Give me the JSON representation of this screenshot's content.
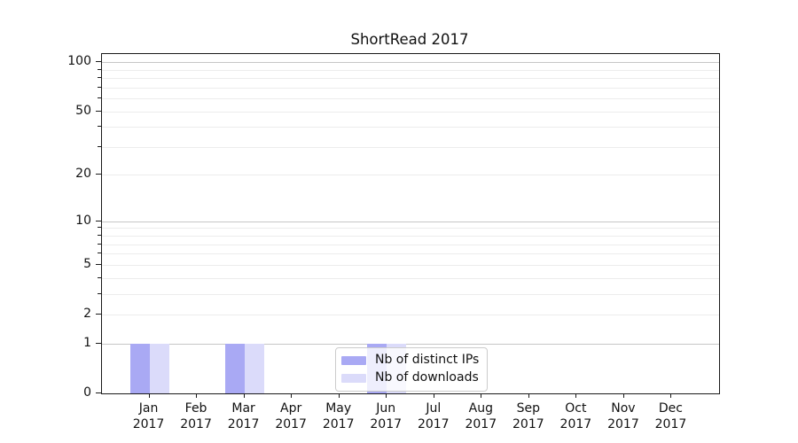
{
  "chart_data": {
    "type": "bar",
    "title": "ShortRead 2017",
    "categories": [
      "Jan",
      "Feb",
      "Mar",
      "Apr",
      "May",
      "Jun",
      "Jul",
      "Aug",
      "Sep",
      "Oct",
      "Nov",
      "Dec"
    ],
    "category_year": "2017",
    "series": [
      {
        "name": "Nb of distinct IPs",
        "color": "#a9a9f4",
        "values": [
          1,
          0,
          1,
          0,
          0,
          1,
          0,
          0,
          0,
          0,
          0,
          0
        ]
      },
      {
        "name": "Nb of downloads",
        "color": "#dbdbfa",
        "values": [
          1,
          0,
          1,
          0,
          0,
          1,
          0,
          0,
          0,
          0,
          0,
          0
        ]
      }
    ],
    "y_axis": {
      "scale": "log1p",
      "labeled_ticks": [
        0,
        1,
        2,
        5,
        10,
        20,
        50,
        100
      ],
      "major_gridlines": [
        1,
        10,
        100
      ],
      "minor_gridlines": [
        2,
        3,
        4,
        5,
        6,
        7,
        8,
        9,
        20,
        30,
        40,
        50,
        60,
        70,
        80,
        90
      ],
      "range": [
        0,
        113
      ]
    },
    "legend": {
      "position": "lower center",
      "entries": [
        "Nb of distinct IPs",
        "Nb of downloads"
      ]
    },
    "grid": true
  }
}
